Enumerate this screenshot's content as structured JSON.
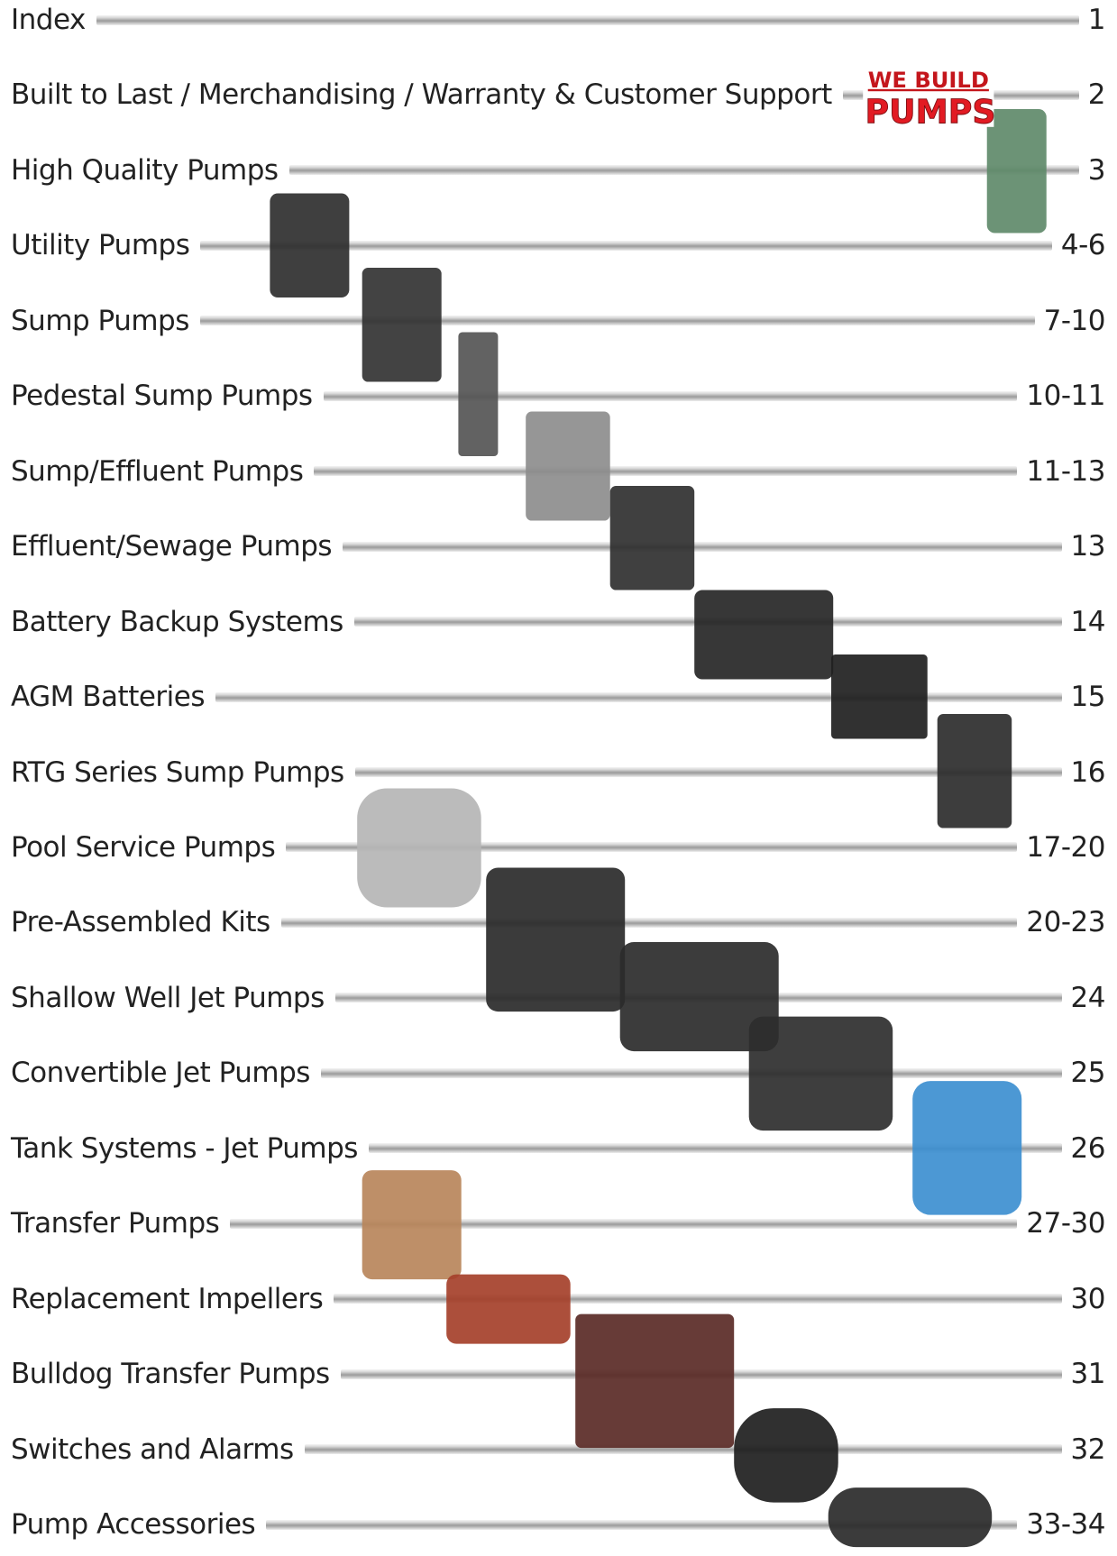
{
  "logo": {
    "line1": "WE BUILD",
    "line2": "PUMPS"
  },
  "entries": [
    {
      "title": "Index",
      "page": "1"
    },
    {
      "title": "Built to Last / Merchandising / Warranty & Customer Support",
      "page": "2"
    },
    {
      "title": "High Quality Pumps",
      "page": "3"
    },
    {
      "title": "Utility Pumps",
      "page": "4-6"
    },
    {
      "title": "Sump Pumps",
      "page": "7-10"
    },
    {
      "title": "Pedestal Sump Pumps",
      "page": "10-11"
    },
    {
      "title": "Sump/Effluent Pumps",
      "page": "11-13"
    },
    {
      "title": "Effluent/Sewage Pumps",
      "page": "13"
    },
    {
      "title": "Battery Backup Systems",
      "page": "14"
    },
    {
      "title": "AGM Batteries",
      "page": "15"
    },
    {
      "title": "RTG Series Sump Pumps",
      "page": "16"
    },
    {
      "title": "Pool Service Pumps",
      "page": "17-20"
    },
    {
      "title": "Pre-Assembled Kits",
      "page": "20-23"
    },
    {
      "title": "Shallow Well Jet Pumps",
      "page": "24"
    },
    {
      "title": "Convertible Jet Pumps",
      "page": "25"
    },
    {
      "title": "Tank Systems - Jet Pumps",
      "page": "26"
    },
    {
      "title": "Transfer Pumps",
      "page": "27-30"
    },
    {
      "title": "Replacement Impellers",
      "page": "30"
    },
    {
      "title": "Bulldog Transfer Pumps",
      "page": "31"
    },
    {
      "title": "Switches and Alarms",
      "page": "32"
    },
    {
      "title": "Pump Accessories",
      "page": "33-34"
    }
  ]
}
